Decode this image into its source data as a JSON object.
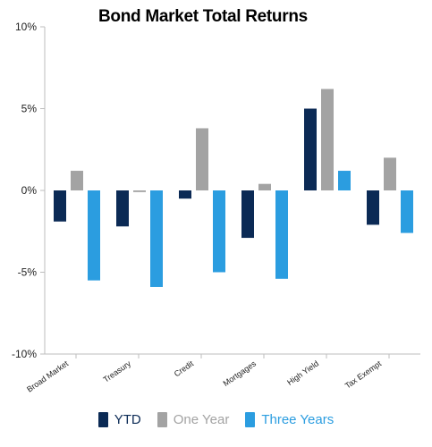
{
  "chart_data": {
    "type": "bar",
    "title": "Bond Market Total Returns",
    "xlabel": "",
    "ylabel": "",
    "categories": [
      "Broad Market",
      "Treasury",
      "Credit",
      "Mortgages",
      "High Yield",
      "Tax Exempt"
    ],
    "series": [
      {
        "name": "YTD",
        "color": "#0b2a55",
        "values": [
          -1.9,
          -2.2,
          -0.5,
          -2.9,
          5.0,
          -2.1
        ]
      },
      {
        "name": "One Year",
        "color": "#a3a3a3",
        "values": [
          1.2,
          -0.1,
          3.8,
          0.4,
          6.2,
          2.0
        ]
      },
      {
        "name": "Three Years",
        "color": "#2b9de0",
        "values": [
          -5.5,
          -5.9,
          -5.0,
          -5.4,
          1.2,
          -2.6
        ]
      }
    ],
    "ylim": [
      -10,
      10
    ],
    "yticks": [
      10,
      5,
      0,
      -5,
      -10
    ],
    "ytick_labels": [
      "10%",
      "5%",
      "0%",
      "-5%",
      "-10%"
    ],
    "grid": false,
    "legend_position": "bottom"
  }
}
